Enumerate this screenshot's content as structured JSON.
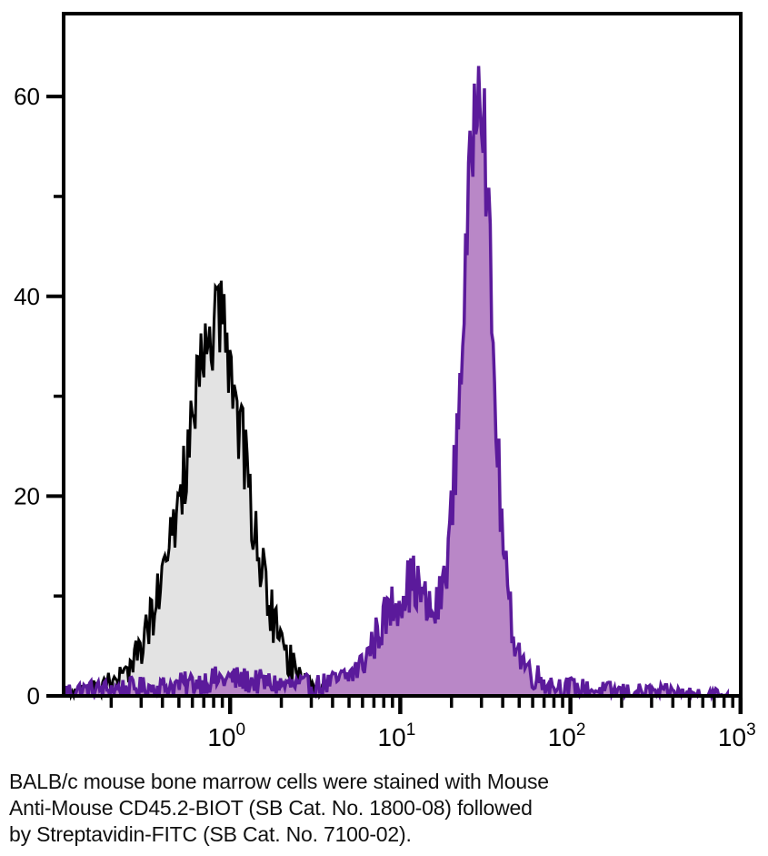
{
  "figure": {
    "caption": {
      "lines": [
        "BALB/c mouse bone marrow cells were stained with Mouse",
        "Anti-Mouse CD45.2-BIOT (SB Cat. No. 1800-08) followed",
        "by Streptavidin-FITC (SB Cat. No. 7100-02)."
      ]
    }
  },
  "chart_data": {
    "type": "area",
    "subtype": "flow-cytometry-histogram-overlay",
    "title": "",
    "xlabel": "",
    "ylabel": "",
    "grid": false,
    "legend": false,
    "x_axis": {
      "scale": "log",
      "range": [
        0.105,
        1000
      ],
      "tick_label_base": "10",
      "major_tick_exponents": [
        0,
        1,
        2,
        3
      ],
      "minor_tick_decades": [
        -1,
        0,
        1,
        2
      ]
    },
    "y_axis": {
      "range": [
        0,
        68.3
      ],
      "major_ticks": [
        0,
        20,
        40,
        60
      ],
      "minor_ticks": [
        10,
        30,
        50
      ],
      "render_max": 68.3
    },
    "series": [
      {
        "id": "control-black",
        "description": "black outlined, light gray filled histogram, peak ~42 at x~0.8",
        "stroke": "#000000",
        "fill": "#e3e3e3",
        "stroke_width": 3,
        "noise": {
          "seed": 77,
          "amp": 0.95,
          "step": 0.0085,
          "clip_max": 43
        },
        "envelope": [
          [
            0.105,
            0.3
          ],
          [
            0.13,
            0.4
          ],
          [
            0.16,
            0.7
          ],
          [
            0.2,
            1.2
          ],
          [
            0.24,
            2.2
          ],
          [
            0.28,
            3.8
          ],
          [
            0.32,
            6
          ],
          [
            0.36,
            8.5
          ],
          [
            0.4,
            11.5
          ],
          [
            0.45,
            15.5
          ],
          [
            0.5,
            19.5
          ],
          [
            0.55,
            23.5
          ],
          [
            0.6,
            27
          ],
          [
            0.65,
            30.5
          ],
          [
            0.7,
            33.5
          ],
          [
            0.75,
            35.8
          ],
          [
            0.8,
            37.2
          ],
          [
            0.85,
            37.5
          ],
          [
            0.9,
            36.8
          ],
          [
            0.95,
            35.2
          ],
          [
            1.0,
            33
          ],
          [
            1.1,
            29
          ],
          [
            1.2,
            24.5
          ],
          [
            1.3,
            20
          ],
          [
            1.45,
            15
          ],
          [
            1.6,
            11
          ],
          [
            1.8,
            7.5
          ],
          [
            2.0,
            5.2
          ],
          [
            2.3,
            3.2
          ],
          [
            2.6,
            2.0
          ],
          [
            3.0,
            1.2
          ],
          [
            3.5,
            0.7
          ],
          [
            4.2,
            0.45
          ],
          [
            5.0,
            0.3
          ],
          [
            5.6,
            0.15
          ],
          [
            6.0,
            0
          ]
        ]
      },
      {
        "id": "stained-purple",
        "description": "dark purple outlined, light purple filled histogram, main peak ~65 at x~29, shoulder ~11 at x~10-12",
        "stroke": "#5b1a9b",
        "fill": "#b987c7",
        "stroke_width": 3.5,
        "noise": {
          "seed": 1234,
          "amp": 0.9,
          "step": 0.0085,
          "clip_max": 65
        },
        "envelope": [
          [
            0.105,
            0.5
          ],
          [
            0.2,
            0.7
          ],
          [
            0.4,
            0.9
          ],
          [
            0.6,
            1.3
          ],
          [
            0.8,
            1.6
          ],
          [
            1.0,
            1.7
          ],
          [
            1.3,
            1.5
          ],
          [
            1.6,
            1.3
          ],
          [
            2.0,
            1.1
          ],
          [
            2.6,
            1.0
          ],
          [
            3.2,
            1.0
          ],
          [
            4.0,
            1.3
          ],
          [
            5.0,
            2.0
          ],
          [
            6.0,
            3.2
          ],
          [
            7.0,
            5.5
          ],
          [
            8.0,
            7.5
          ],
          [
            9.0,
            9.0
          ],
          [
            10,
            10
          ],
          [
            11,
            11
          ],
          [
            12,
            11.5
          ],
          [
            13,
            10.5
          ],
          [
            14,
            9.2
          ],
          [
            15,
            8.2
          ],
          [
            16,
            8.3
          ],
          [
            17,
            9.5
          ],
          [
            18,
            11.5
          ],
          [
            19,
            14.5
          ],
          [
            20,
            18
          ],
          [
            21,
            23
          ],
          [
            22,
            29
          ],
          [
            23,
            35
          ],
          [
            24,
            41
          ],
          [
            25,
            47
          ],
          [
            26,
            53
          ],
          [
            27,
            58
          ],
          [
            28,
            62
          ],
          [
            29,
            64.5
          ],
          [
            30,
            62.5
          ],
          [
            31,
            58
          ],
          [
            32,
            53
          ],
          [
            33,
            47
          ],
          [
            34,
            41
          ],
          [
            35,
            35
          ],
          [
            36,
            30
          ],
          [
            37,
            26
          ],
          [
            38,
            22
          ],
          [
            39,
            18.5
          ],
          [
            40,
            15.5
          ],
          [
            42,
            11.5
          ],
          [
            44,
            8.5
          ],
          [
            47,
            6.0
          ],
          [
            50,
            4.4
          ],
          [
            54,
            3.2
          ],
          [
            59,
            2.3
          ],
          [
            66,
            1.7
          ],
          [
            75,
            1.2
          ],
          [
            90,
            0.9
          ],
          [
            115,
            0.7
          ],
          [
            160,
            0.5
          ],
          [
            260,
            0.35
          ],
          [
            430,
            0.25
          ],
          [
            620,
            0.18
          ],
          [
            750,
            0.12
          ],
          [
            820,
            0.05
          ],
          [
            840,
            0
          ]
        ]
      }
    ],
    "colors": {
      "frame": "#000000",
      "purple_stroke": "#5b1a9b",
      "purple_fill": "#b987c7",
      "gray_fill": "#e3e3e3",
      "caption_text": "#111111"
    }
  }
}
